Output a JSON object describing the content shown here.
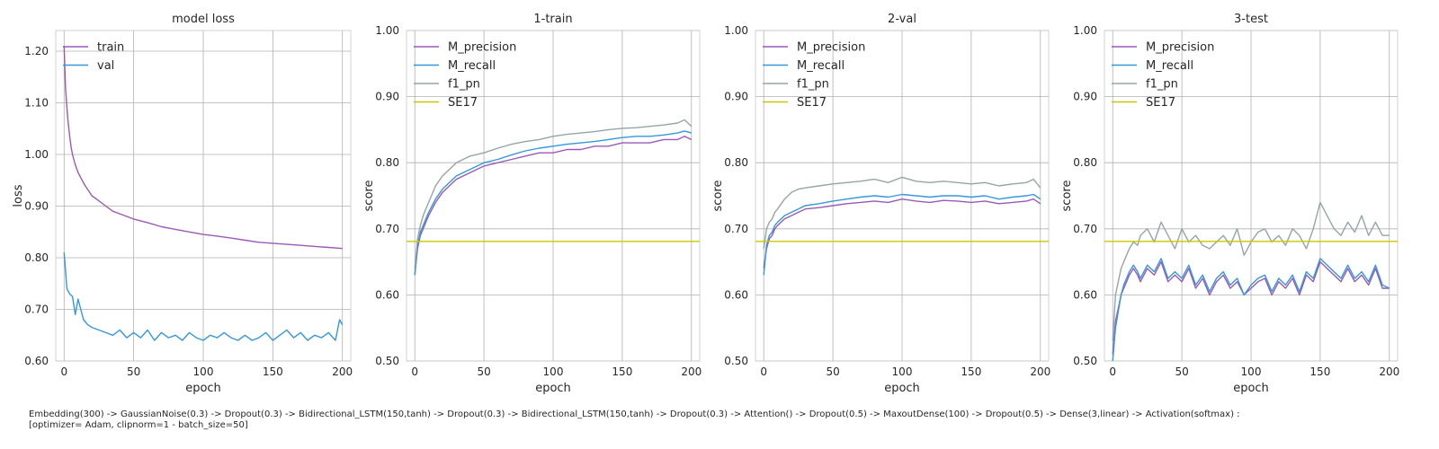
{
  "chart_data": [
    {
      "type": "line",
      "title": "model loss",
      "xlabel": "epoch",
      "ylabel": "loss",
      "xlim": [
        -6,
        206
      ],
      "ylim": [
        0.6,
        1.24
      ],
      "xticks": [
        0,
        50,
        100,
        150,
        200
      ],
      "yticks": [
        0.6,
        0.7,
        0.8,
        0.9,
        1.0,
        1.1,
        1.2
      ],
      "grid": true,
      "legend": "upper-left",
      "series": [
        {
          "name": "train",
          "color": "#9b59b6",
          "x": [
            0,
            1,
            2,
            3,
            4,
            5,
            6,
            8,
            10,
            12,
            15,
            20,
            25,
            30,
            35,
            40,
            45,
            50,
            60,
            70,
            80,
            90,
            100,
            110,
            120,
            130,
            140,
            150,
            160,
            170,
            180,
            190,
            200
          ],
          "y": [
            1.21,
            1.13,
            1.09,
            1.06,
            1.035,
            1.015,
            1.0,
            0.98,
            0.965,
            0.955,
            0.94,
            0.92,
            0.91,
            0.9,
            0.89,
            0.885,
            0.88,
            0.875,
            0.868,
            0.86,
            0.855,
            0.85,
            0.845,
            0.842,
            0.838,
            0.834,
            0.83,
            0.828,
            0.826,
            0.824,
            0.822,
            0.82,
            0.818
          ]
        },
        {
          "name": "val",
          "color": "#3498db",
          "x": [
            0,
            2,
            4,
            6,
            8,
            10,
            12,
            14,
            17,
            20,
            25,
            30,
            35,
            40,
            45,
            50,
            55,
            60,
            65,
            70,
            75,
            80,
            85,
            90,
            95,
            100,
            105,
            110,
            115,
            120,
            125,
            130,
            135,
            140,
            145,
            150,
            155,
            160,
            165,
            170,
            175,
            180,
            185,
            190,
            195,
            198,
            200
          ],
          "y": [
            0.81,
            0.74,
            0.73,
            0.725,
            0.69,
            0.72,
            0.7,
            0.68,
            0.67,
            0.665,
            0.66,
            0.655,
            0.65,
            0.66,
            0.645,
            0.655,
            0.645,
            0.66,
            0.64,
            0.655,
            0.645,
            0.65,
            0.64,
            0.655,
            0.645,
            0.64,
            0.65,
            0.645,
            0.655,
            0.645,
            0.64,
            0.65,
            0.64,
            0.645,
            0.655,
            0.64,
            0.65,
            0.66,
            0.645,
            0.655,
            0.64,
            0.65,
            0.645,
            0.655,
            0.64,
            0.68,
            0.67
          ]
        }
      ]
    },
    {
      "type": "line",
      "title": "1-train",
      "xlabel": "epoch",
      "ylabel": "score",
      "xlim": [
        -6,
        206
      ],
      "ylim": [
        0.5,
        1.0
      ],
      "xticks": [
        0,
        50,
        100,
        150,
        200
      ],
      "yticks": [
        0.5,
        0.6,
        0.7,
        0.8,
        0.9,
        1.0
      ],
      "grid": true,
      "legend": "upper-left",
      "series": [
        {
          "name": "M_precision",
          "color": "#9b59b6",
          "x": [
            0,
            2,
            4,
            6,
            8,
            10,
            15,
            20,
            25,
            30,
            40,
            50,
            60,
            70,
            80,
            90,
            100,
            110,
            120,
            130,
            140,
            150,
            160,
            170,
            180,
            190,
            195,
            200
          ],
          "y": [
            0.63,
            0.67,
            0.69,
            0.7,
            0.71,
            0.72,
            0.74,
            0.755,
            0.765,
            0.775,
            0.785,
            0.795,
            0.8,
            0.805,
            0.81,
            0.815,
            0.815,
            0.82,
            0.82,
            0.825,
            0.825,
            0.83,
            0.83,
            0.83,
            0.835,
            0.835,
            0.84,
            0.835
          ]
        },
        {
          "name": "M_recall",
          "color": "#3498db",
          "x": [
            0,
            2,
            4,
            6,
            8,
            10,
            15,
            20,
            25,
            30,
            40,
            50,
            60,
            70,
            80,
            90,
            100,
            110,
            120,
            130,
            140,
            150,
            160,
            170,
            180,
            190,
            195,
            200
          ],
          "y": [
            0.63,
            0.675,
            0.695,
            0.705,
            0.715,
            0.725,
            0.745,
            0.76,
            0.77,
            0.78,
            0.79,
            0.8,
            0.805,
            0.812,
            0.818,
            0.822,
            0.825,
            0.828,
            0.83,
            0.832,
            0.835,
            0.838,
            0.84,
            0.84,
            0.842,
            0.845,
            0.848,
            0.845
          ]
        },
        {
          "name": "f1_pn",
          "color": "#95a5a6",
          "x": [
            0,
            2,
            4,
            6,
            8,
            10,
            15,
            20,
            25,
            30,
            40,
            50,
            60,
            70,
            80,
            90,
            100,
            110,
            120,
            130,
            140,
            150,
            160,
            170,
            180,
            190,
            195,
            200
          ],
          "y": [
            0.64,
            0.685,
            0.705,
            0.72,
            0.73,
            0.74,
            0.765,
            0.78,
            0.79,
            0.8,
            0.81,
            0.815,
            0.822,
            0.828,
            0.832,
            0.835,
            0.84,
            0.843,
            0.845,
            0.847,
            0.85,
            0.852,
            0.853,
            0.855,
            0.857,
            0.86,
            0.865,
            0.855
          ]
        },
        {
          "name": "SE17",
          "color": "#c8c800",
          "x": [
            -6,
            206
          ],
          "y": [
            0.681,
            0.681
          ]
        }
      ]
    },
    {
      "type": "line",
      "title": "2-val",
      "xlabel": "epoch",
      "ylabel": "score",
      "xlim": [
        -6,
        206
      ],
      "ylim": [
        0.5,
        1.0
      ],
      "xticks": [
        0,
        50,
        100,
        150,
        200
      ],
      "yticks": [
        0.5,
        0.6,
        0.7,
        0.8,
        0.9,
        1.0
      ],
      "grid": true,
      "legend": "upper-left",
      "series": [
        {
          "name": "M_precision",
          "color": "#9b59b6",
          "x": [
            0,
            2,
            4,
            6,
            8,
            10,
            15,
            20,
            25,
            30,
            40,
            50,
            60,
            70,
            80,
            90,
            100,
            110,
            120,
            130,
            140,
            150,
            160,
            170,
            180,
            190,
            195,
            200
          ],
          "y": [
            0.64,
            0.67,
            0.685,
            0.69,
            0.7,
            0.705,
            0.715,
            0.72,
            0.725,
            0.73,
            0.732,
            0.735,
            0.738,
            0.74,
            0.742,
            0.74,
            0.745,
            0.742,
            0.74,
            0.743,
            0.742,
            0.74,
            0.742,
            0.738,
            0.74,
            0.742,
            0.745,
            0.738
          ]
        },
        {
          "name": "M_recall",
          "color": "#3498db",
          "x": [
            0,
            2,
            4,
            6,
            8,
            10,
            15,
            20,
            25,
            30,
            40,
            50,
            60,
            70,
            80,
            90,
            100,
            110,
            120,
            130,
            140,
            150,
            160,
            170,
            180,
            190,
            195,
            200
          ],
          "y": [
            0.63,
            0.675,
            0.69,
            0.695,
            0.705,
            0.71,
            0.72,
            0.725,
            0.73,
            0.735,
            0.738,
            0.742,
            0.745,
            0.748,
            0.75,
            0.748,
            0.752,
            0.75,
            0.748,
            0.75,
            0.75,
            0.748,
            0.75,
            0.745,
            0.748,
            0.75,
            0.752,
            0.745
          ]
        },
        {
          "name": "f1_pn",
          "color": "#95a5a6",
          "x": [
            0,
            2,
            4,
            6,
            8,
            10,
            15,
            20,
            25,
            30,
            40,
            50,
            60,
            70,
            80,
            90,
            100,
            110,
            120,
            130,
            140,
            150,
            160,
            170,
            180,
            190,
            195,
            200
          ],
          "y": [
            0.67,
            0.7,
            0.71,
            0.715,
            0.725,
            0.73,
            0.745,
            0.755,
            0.76,
            0.762,
            0.765,
            0.768,
            0.77,
            0.772,
            0.775,
            0.77,
            0.778,
            0.772,
            0.77,
            0.772,
            0.77,
            0.768,
            0.77,
            0.765,
            0.768,
            0.77,
            0.775,
            0.762
          ]
        },
        {
          "name": "SE17",
          "color": "#c8c800",
          "x": [
            -6,
            206
          ],
          "y": [
            0.681,
            0.681
          ]
        }
      ]
    },
    {
      "type": "line",
      "title": "3-test",
      "xlabel": "epoch",
      "ylabel": "score",
      "xlim": [
        -6,
        206
      ],
      "ylim": [
        0.5,
        1.0
      ],
      "xticks": [
        0,
        50,
        100,
        150,
        200
      ],
      "yticks": [
        0.5,
        0.6,
        0.7,
        0.8,
        0.9,
        1.0
      ],
      "grid": true,
      "legend": "upper-left",
      "series": [
        {
          "name": "M_precision",
          "color": "#9b59b6",
          "x": [
            0,
            2,
            4,
            6,
            8,
            10,
            12,
            15,
            18,
            20,
            25,
            30,
            35,
            40,
            45,
            50,
            55,
            60,
            65,
            70,
            75,
            80,
            85,
            90,
            95,
            100,
            105,
            110,
            115,
            120,
            125,
            130,
            135,
            140,
            145,
            150,
            155,
            160,
            165,
            170,
            175,
            180,
            185,
            190,
            195,
            200
          ],
          "y": [
            0.51,
            0.56,
            0.58,
            0.6,
            0.61,
            0.62,
            0.63,
            0.64,
            0.63,
            0.62,
            0.64,
            0.63,
            0.65,
            0.62,
            0.63,
            0.62,
            0.64,
            0.61,
            0.625,
            0.6,
            0.62,
            0.63,
            0.61,
            0.62,
            0.6,
            0.61,
            0.62,
            0.625,
            0.6,
            0.62,
            0.61,
            0.625,
            0.6,
            0.63,
            0.62,
            0.65,
            0.64,
            0.63,
            0.62,
            0.64,
            0.62,
            0.63,
            0.615,
            0.64,
            0.61,
            0.61
          ]
        },
        {
          "name": "M_recall",
          "color": "#3498db",
          "x": [
            0,
            2,
            4,
            6,
            8,
            10,
            12,
            15,
            18,
            20,
            25,
            30,
            35,
            40,
            45,
            50,
            55,
            60,
            65,
            70,
            75,
            80,
            85,
            90,
            95,
            100,
            105,
            110,
            115,
            120,
            125,
            130,
            135,
            140,
            145,
            150,
            155,
            160,
            165,
            170,
            175,
            180,
            185,
            190,
            195,
            200
          ],
          "y": [
            0.5,
            0.55,
            0.575,
            0.6,
            0.615,
            0.625,
            0.635,
            0.645,
            0.635,
            0.625,
            0.645,
            0.635,
            0.655,
            0.625,
            0.635,
            0.625,
            0.645,
            0.615,
            0.63,
            0.605,
            0.625,
            0.635,
            0.615,
            0.625,
            0.6,
            0.615,
            0.625,
            0.63,
            0.605,
            0.625,
            0.615,
            0.63,
            0.605,
            0.635,
            0.625,
            0.655,
            0.645,
            0.635,
            0.625,
            0.645,
            0.625,
            0.635,
            0.62,
            0.645,
            0.615,
            0.61
          ]
        },
        {
          "name": "f1_pn",
          "color": "#95a5a6",
          "x": [
            0,
            2,
            4,
            6,
            8,
            10,
            12,
            15,
            18,
            20,
            25,
            30,
            35,
            40,
            45,
            50,
            55,
            60,
            65,
            70,
            75,
            80,
            85,
            90,
            95,
            100,
            105,
            110,
            115,
            120,
            125,
            130,
            135,
            140,
            145,
            150,
            155,
            160,
            165,
            170,
            175,
            180,
            185,
            190,
            195,
            200
          ],
          "y": [
            0.53,
            0.6,
            0.62,
            0.64,
            0.65,
            0.66,
            0.67,
            0.68,
            0.675,
            0.69,
            0.7,
            0.68,
            0.71,
            0.69,
            0.67,
            0.7,
            0.68,
            0.69,
            0.675,
            0.67,
            0.68,
            0.69,
            0.675,
            0.7,
            0.66,
            0.68,
            0.695,
            0.7,
            0.68,
            0.69,
            0.675,
            0.7,
            0.69,
            0.67,
            0.7,
            0.74,
            0.72,
            0.7,
            0.69,
            0.71,
            0.695,
            0.72,
            0.69,
            0.71,
            0.69,
            0.69
          ]
        },
        {
          "name": "SE17",
          "color": "#c8c800",
          "x": [
            -6,
            206
          ],
          "y": [
            0.681,
            0.681
          ]
        }
      ]
    }
  ],
  "caption": {
    "line1": "Embedding(300) -> GaussianNoise(0.3) -> Dropout(0.3) -> Bidirectional_LSTM(150,tanh) -> Dropout(0.3) -> Bidirectional_LSTM(150,tanh) -> Dropout(0.3) -> Attention() -> Dropout(0.5) -> MaxoutDense(100) -> Dropout(0.5) -> Dense(3,linear) -> Activation(softmax) :",
    "line2": "[optimizer= Adam, clipnorm=1 - batch_size=50]"
  }
}
